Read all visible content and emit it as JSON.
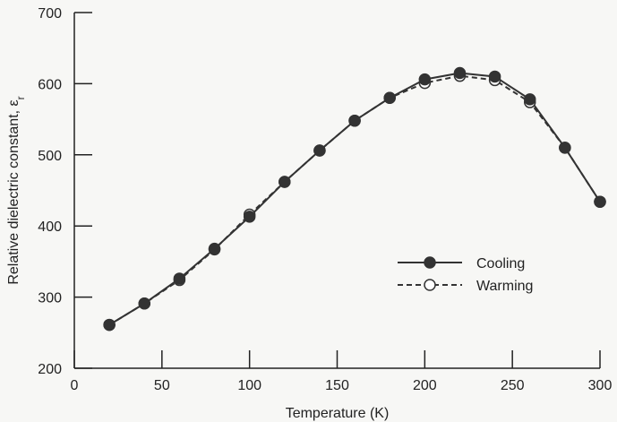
{
  "chart_data": {
    "type": "line",
    "title": "",
    "xlabel": "Temperature (K)",
    "ylabel": "Relative dielectric constant, ε",
    "ylabel_subscript": "r",
    "xlim": [
      0,
      300
    ],
    "ylim": [
      200,
      700
    ],
    "xticks": [
      0,
      50,
      100,
      150,
      200,
      250,
      300
    ],
    "yticks": [
      200,
      300,
      400,
      500,
      600,
      700
    ],
    "grid": false,
    "legend_position": "center-right",
    "series": [
      {
        "name": "Cooling",
        "marker": "filled-circle",
        "line_style": "solid",
        "color": "#333333",
        "x": [
          20,
          40,
          60,
          80,
          100,
          120,
          140,
          160,
          180,
          200,
          220,
          240,
          260,
          280,
          300
        ],
        "y": [
          261,
          291,
          326,
          368,
          413,
          462,
          506,
          548,
          580,
          606,
          615,
          610,
          578,
          510,
          434
        ]
      },
      {
        "name": "Warming",
        "marker": "open-circle",
        "line_style": "dashed",
        "color": "#333333",
        "x": [
          20,
          40,
          60,
          80,
          100,
          120,
          140,
          160,
          180,
          200,
          220,
          240,
          260,
          280,
          300
        ],
        "y": [
          261,
          291,
          324,
          367,
          416,
          462,
          506,
          548,
          580,
          601,
          611,
          605,
          574,
          510,
          434
        ]
      }
    ]
  }
}
